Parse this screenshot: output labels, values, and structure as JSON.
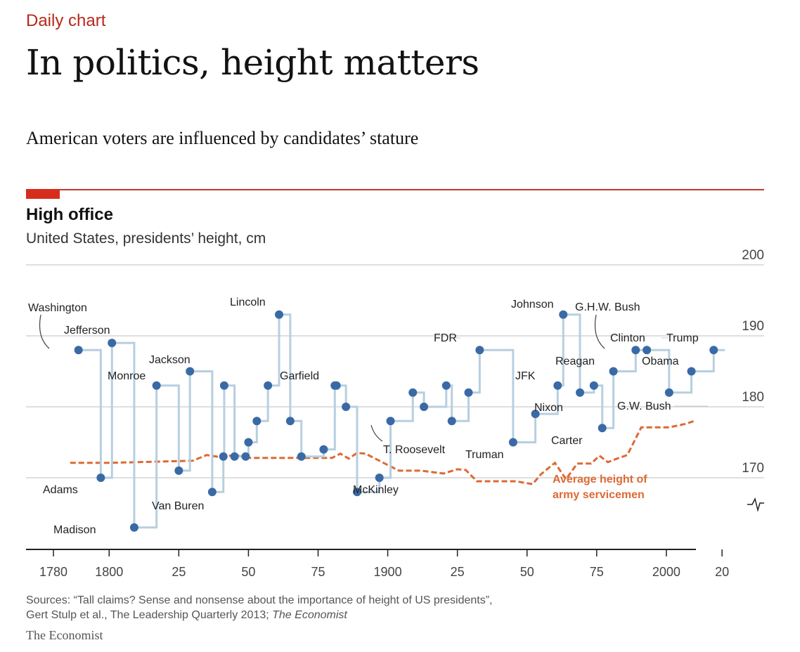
{
  "header": {
    "kicker": "Daily chart",
    "headline": "In politics, height matters",
    "standfirst": "American voters are influenced by candidates’ stature"
  },
  "colors": {
    "accent_red": "#d62d1e",
    "president_line": "#b7cfe0",
    "president_dot": "#3a6aa5",
    "army_line": "#dc6a34",
    "grid": "#cccccc"
  },
  "chart_data": {
    "type": "line",
    "title": "High office",
    "subtitle": "United States, presidents’ height, cm",
    "xlim": [
      1776,
      2023
    ],
    "ylim": [
      163,
      200
    ],
    "x_ticks": [
      1780,
      1800,
      1825,
      1850,
      1875,
      1900,
      1925,
      1950,
      1975,
      2000,
      2020
    ],
    "x_tick_labels": [
      "1780",
      "1800",
      "25",
      "50",
      "75",
      "1900",
      "25",
      "50",
      "75",
      "2000",
      "20"
    ],
    "y_ticks": [
      170,
      180,
      190,
      200
    ],
    "y_tick_labels": [
      "170",
      "180",
      "190",
      "200"
    ],
    "grid": true,
    "axis_break_icon": "axis-break-icon",
    "series": [
      {
        "kind": "step",
        "points": [
          {
            "x": 1789,
            "y": 188,
            "label": "Washington"
          },
          {
            "x": 1797,
            "y": 170,
            "label": "Adams"
          },
          {
            "x": 1801,
            "y": 189,
            "label": "Jefferson"
          },
          {
            "x": 1809,
            "y": 163,
            "label": "Madison"
          },
          {
            "x": 1817,
            "y": 183,
            "label": "Monroe"
          },
          {
            "x": 1825,
            "y": 171
          },
          {
            "x": 1829,
            "y": 185,
            "label": "Jackson"
          },
          {
            "x": 1837,
            "y": 168,
            "label": "Van Buren"
          },
          {
            "x": 1841,
            "y": 173
          },
          {
            "x": 1841.3,
            "y": 183
          },
          {
            "x": 1845,
            "y": 173
          },
          {
            "x": 1849,
            "y": 173
          },
          {
            "x": 1850,
            "y": 175
          },
          {
            "x": 1853,
            "y": 178
          },
          {
            "x": 1857,
            "y": 183
          },
          {
            "x": 1861,
            "y": 193,
            "label": "Lincoln"
          },
          {
            "x": 1865,
            "y": 178
          },
          {
            "x": 1869,
            "y": 173
          },
          {
            "x": 1877,
            "y": 174
          },
          {
            "x": 1881,
            "y": 183,
            "label": "Garfield"
          },
          {
            "x": 1881.6,
            "y": 183
          },
          {
            "x": 1885,
            "y": 180
          },
          {
            "x": 1889,
            "y": 168
          },
          {
            "x": 1897,
            "y": 170,
            "label": "McKinley"
          },
          {
            "x": 1901,
            "y": 178,
            "label": "T. Roosevelt"
          },
          {
            "x": 1909,
            "y": 182
          },
          {
            "x": 1913,
            "y": 180
          },
          {
            "x": 1921,
            "y": 183
          },
          {
            "x": 1923,
            "y": 178
          },
          {
            "x": 1929,
            "y": 182
          },
          {
            "x": 1933,
            "y": 188,
            "label": "FDR"
          },
          {
            "x": 1945,
            "y": 175,
            "label": "Truman"
          },
          {
            "x": 1953,
            "y": 179
          },
          {
            "x": 1961,
            "y": 183,
            "label": "JFK"
          },
          {
            "x": 1963,
            "y": 193,
            "label": "Johnson"
          },
          {
            "x": 1969,
            "y": 182,
            "label": "Nixon"
          },
          {
            "x": 1974,
            "y": 183
          },
          {
            "x": 1977,
            "y": 177,
            "label": "Carter"
          },
          {
            "x": 1981,
            "y": 185,
            "label": "Reagan"
          },
          {
            "x": 1989,
            "y": 188,
            "label": "G.H.W. Bush"
          },
          {
            "x": 1993,
            "y": 188,
            "label": "Clinton"
          },
          {
            "x": 2001,
            "y": 182,
            "label": "G.W. Bush"
          },
          {
            "x": 2009,
            "y": 185,
            "label": "Obama"
          },
          {
            "x": 2017,
            "y": 188,
            "label": "Trump"
          }
        ]
      },
      {
        "name": "Average height of army servicemen",
        "kind": "dashed",
        "points": [
          {
            "x": 1786,
            "y": 172.1
          },
          {
            "x": 1800,
            "y": 172.1
          },
          {
            "x": 1820,
            "y": 172.3
          },
          {
            "x": 1830,
            "y": 172.4
          },
          {
            "x": 1835,
            "y": 173.2
          },
          {
            "x": 1840,
            "y": 172.9
          },
          {
            "x": 1845,
            "y": 173.2
          },
          {
            "x": 1850,
            "y": 172.8
          },
          {
            "x": 1880,
            "y": 172.8
          },
          {
            "x": 1883,
            "y": 173.4
          },
          {
            "x": 1886,
            "y": 172.7
          },
          {
            "x": 1889,
            "y": 173.5
          },
          {
            "x": 1892,
            "y": 173.4
          },
          {
            "x": 1898,
            "y": 172.2
          },
          {
            "x": 1904,
            "y": 171.0
          },
          {
            "x": 1912,
            "y": 171.0
          },
          {
            "x": 1920,
            "y": 170.6
          },
          {
            "x": 1925,
            "y": 171.2
          },
          {
            "x": 1928,
            "y": 171.1
          },
          {
            "x": 1932,
            "y": 169.5
          },
          {
            "x": 1946,
            "y": 169.5
          },
          {
            "x": 1952,
            "y": 169.1
          },
          {
            "x": 1955,
            "y": 170.5
          },
          {
            "x": 1960,
            "y": 172.1
          },
          {
            "x": 1964,
            "y": 169.8
          },
          {
            "x": 1968,
            "y": 172.0
          },
          {
            "x": 1973,
            "y": 172.0
          },
          {
            "x": 1976,
            "y": 173.1
          },
          {
            "x": 1979,
            "y": 172.2
          },
          {
            "x": 1983,
            "y": 172.8
          },
          {
            "x": 1986,
            "y": 173.2
          },
          {
            "x": 1991,
            "y": 177.1
          },
          {
            "x": 2001,
            "y": 177.1
          },
          {
            "x": 2007,
            "y": 177.6
          },
          {
            "x": 2010,
            "y": 178.0
          }
        ]
      }
    ]
  },
  "footer": {
    "source_line1": "Sources: “Tall claims? Sense and nonsense about the importance of height of US presidents”,",
    "source_line2": "Gert Stulp et al., The Leadership Quarterly 2013; ",
    "source_line2_italic": "The Economist",
    "brand": "The Economist"
  }
}
